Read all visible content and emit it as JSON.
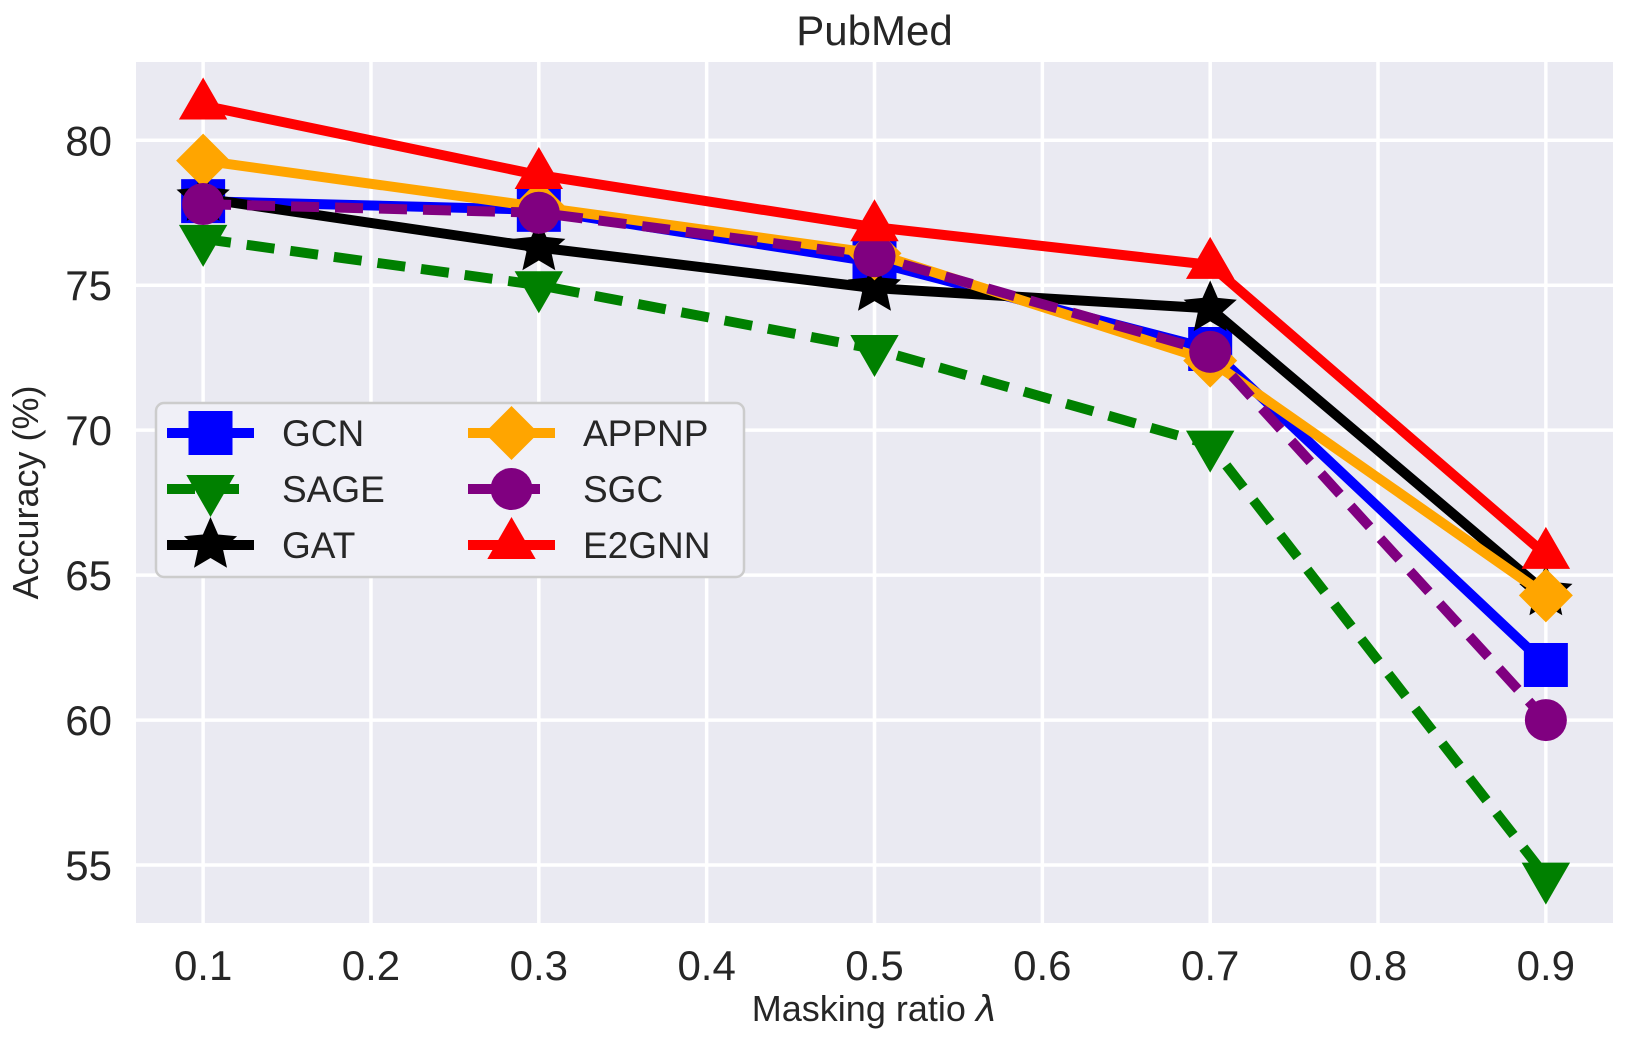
{
  "chart_data": {
    "type": "line",
    "title": "PubMed",
    "xlabel": "Masking ratio λ",
    "xlabel_prefix": "Masking ratio ",
    "xlabel_symbol": "λ",
    "ylabel": "Accuracy (%)",
    "x": [
      0.1,
      0.3,
      0.5,
      0.7,
      0.9
    ],
    "xticks": [
      0.1,
      0.2,
      0.3,
      0.4,
      0.5,
      0.6,
      0.7,
      0.8,
      0.9
    ],
    "xtick_labels": [
      "0.1",
      "0.2",
      "0.3",
      "0.4",
      "0.5",
      "0.6",
      "0.7",
      "0.8",
      "0.9"
    ],
    "yticks": [
      80,
      75,
      70,
      65,
      60,
      55
    ],
    "ytick_labels": [
      "80",
      "75",
      "70",
      "65",
      "60",
      "55"
    ],
    "xlim": [
      0.06,
      0.94
    ],
    "ylim": [
      53.0,
      82.7
    ],
    "grid": true,
    "background_color": "#eaeaf2",
    "gridline_color": "#ffffff",
    "text_color": "#262626",
    "legend": {
      "position": "center left",
      "columns": 2,
      "facecolor": "#f0f0f7",
      "edgecolor": "#cccccc"
    },
    "series": [
      {
        "name": "GCN",
        "color": "#0000ff",
        "linestyle": "solid",
        "marker": "square",
        "values": [
          77.9,
          77.6,
          75.8,
          72.8,
          61.9
        ]
      },
      {
        "name": "SAGE",
        "color": "#008000",
        "linestyle": "dashed",
        "marker": "triangle-down",
        "values": [
          76.6,
          75.0,
          72.8,
          69.5,
          54.6
        ]
      },
      {
        "name": "GAT",
        "color": "#000000",
        "linestyle": "solid",
        "marker": "star",
        "values": [
          78.0,
          76.3,
          74.9,
          74.2,
          64.4
        ]
      },
      {
        "name": "APPNP",
        "color": "#ffa500",
        "linestyle": "solid",
        "marker": "diamond",
        "values": [
          79.3,
          77.7,
          76.1,
          72.4,
          64.3
        ]
      },
      {
        "name": "SGC",
        "color": "#800080",
        "linestyle": "dashed",
        "marker": "circle",
        "values": [
          77.8,
          77.5,
          76.0,
          72.7,
          60.0
        ]
      },
      {
        "name": "E2GNN",
        "color": "#ff0000",
        "linestyle": "solid",
        "marker": "triangle-up",
        "values": [
          81.2,
          78.8,
          77.0,
          75.7,
          65.7
        ]
      }
    ]
  }
}
